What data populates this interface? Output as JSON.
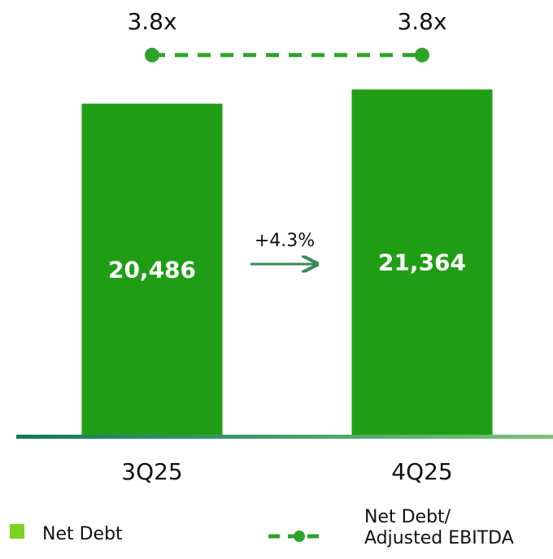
{
  "chart_data": {
    "type": "bar",
    "categories": [
      "3Q25",
      "4Q25"
    ],
    "ylim": [
      0,
      26400
    ],
    "y2lim": [
      0,
      4.27
    ],
    "series": [
      {
        "name": "Net Debt",
        "color": "#1f9e15",
        "legend_color": "#7ed321",
        "values": [
          20486,
          21364
        ],
        "value_labels": [
          "20,486",
          "21,364"
        ]
      },
      {
        "name": "Net Debt/\nAdjusted EBITDA",
        "type": "line",
        "axis": "y2",
        "color": "#2ea32a",
        "values": [
          3.8,
          3.8
        ],
        "value_labels": [
          "3.8x",
          "3.8x"
        ]
      }
    ],
    "annotations": [
      {
        "text": "+4.3%"
      }
    ]
  }
}
